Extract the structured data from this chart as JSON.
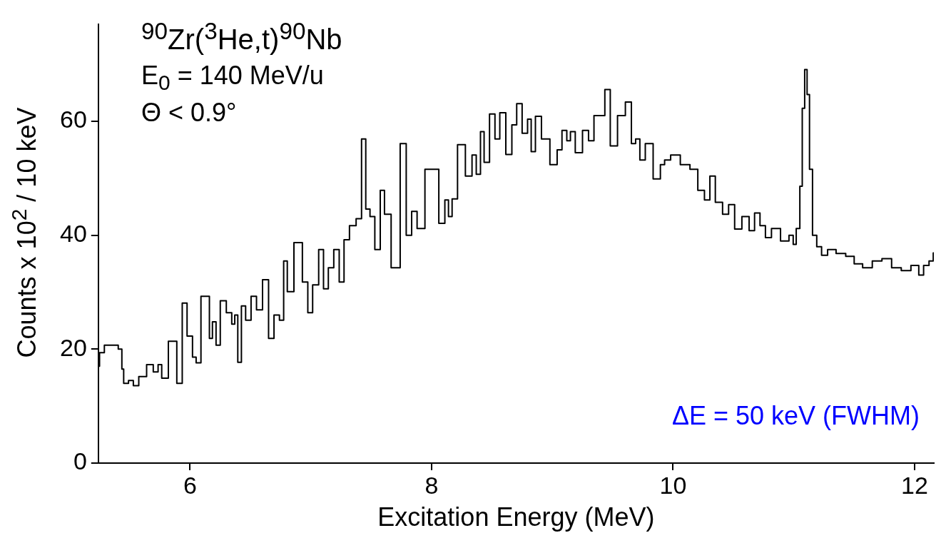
{
  "chart_data": {
    "type": "step",
    "xlabel": "Excitation Energy (MeV)",
    "ylabel": "Counts x 10$^{2}$ / 10 keV",
    "annotations": [
      "$^{90}$Zr($^{3}$He,t)$^{90}$Nb",
      "E$_{0}$ = 140 MeV/u",
      "Θ < 0.9°",
      "ΔE = 50 keV (FWHM)"
    ],
    "xlim": [
      5.24,
      12.16
    ],
    "xticks": [
      6,
      8,
      10,
      12
    ],
    "ylim": [
      0,
      77
    ],
    "yticks": [
      0,
      20,
      40,
      60
    ],
    "grid": false,
    "marker": "none",
    "line_style": "solid",
    "series": [
      {
        "color": "#000000",
        "x": [
          5.24,
          5.26,
          5.32,
          5.38,
          5.43,
          5.44,
          5.46,
          5.52,
          5.54,
          5.61,
          5.67,
          5.72,
          5.75,
          5.78,
          5.86,
          5.92,
          5.95,
          6.0,
          6.04,
          6.06,
          6.12,
          6.15,
          6.17,
          6.2,
          6.23,
          6.27,
          6.33,
          6.36,
          6.38,
          6.41,
          6.44,
          6.48,
          6.53,
          6.57,
          6.63,
          6.67,
          6.72,
          6.76,
          6.79,
          6.82,
          6.9,
          6.96,
          6.99,
          7.04,
          7.09,
          7.12,
          7.17,
          7.21,
          7.26,
          7.29,
          7.35,
          7.4,
          7.44,
          7.47,
          7.51,
          7.55,
          7.6,
          7.62,
          7.71,
          7.77,
          7.81,
          7.86,
          7.9,
          7.99,
          8.03,
          8.09,
          8.13,
          8.15,
          8.19,
          8.24,
          8.32,
          8.35,
          8.39,
          8.42,
          8.45,
          8.51,
          8.54,
          8.59,
          8.64,
          8.69,
          8.72,
          8.78,
          8.81,
          8.84,
          8.88,
          8.94,
          9.02,
          9.06,
          9.1,
          9.14,
          9.16,
          9.22,
          9.28,
          9.32,
          9.37,
          9.42,
          9.45,
          9.51,
          9.57,
          9.64,
          9.67,
          9.71,
          9.74,
          9.8,
          9.87,
          9.92,
          9.94,
          10.02,
          10.1,
          10.18,
          10.23,
          10.29,
          10.32,
          10.38,
          10.44,
          10.48,
          10.54,
          10.6,
          10.66,
          10.69,
          10.75,
          10.78,
          10.85,
          10.93,
          10.99,
          11.0,
          11.04,
          11.06,
          11.08,
          11.1,
          11.12,
          11.14,
          11.17,
          11.21,
          11.25,
          11.31,
          11.39,
          11.47,
          11.53,
          11.61,
          11.69,
          11.77,
          11.85,
          11.93,
          12.01,
          12.06,
          12.09,
          12.15,
          12.16
        ],
        "values": [
          17,
          19.4,
          20.7,
          20.7,
          20,
          16.5,
          14,
          14.5,
          13.6,
          15.2,
          17.3,
          16,
          17.3,
          14.9,
          21.4,
          14,
          28.1,
          22.3,
          18.6,
          17.6,
          29.3,
          29.3,
          21.9,
          24.8,
          20.7,
          28.5,
          26.4,
          24.4,
          26,
          17.7,
          27.6,
          25.1,
          29.3,
          26.9,
          32.2,
          21.9,
          26,
          25.1,
          35.5,
          30.1,
          38.7,
          31.8,
          26.4,
          31.3,
          37.5,
          30.6,
          34.3,
          37.5,
          31.8,
          39.2,
          41.7,
          42.9,
          56.9,
          44.6,
          43.3,
          37.5,
          47.9,
          43.7,
          34.3,
          56.1,
          40,
          44.2,
          41.2,
          51.6,
          51.6,
          42.1,
          46.2,
          43.3,
          46.4,
          55.9,
          50.4,
          54.1,
          50.7,
          58.2,
          52.8,
          61.3,
          56.9,
          61.5,
          54.2,
          59.4,
          63.1,
          57.9,
          60.4,
          54.7,
          60.9,
          56.9,
          52.4,
          55,
          58.4,
          56.6,
          58.2,
          54.5,
          58.4,
          56.6,
          61,
          61,
          65.6,
          55.7,
          61,
          63.4,
          56.1,
          56.9,
          53.2,
          56.1,
          49.9,
          52.4,
          53.2,
          54.1,
          52.4,
          51.6,
          47.9,
          46.2,
          50.4,
          45.8,
          43.7,
          45.4,
          41.1,
          43.3,
          40.8,
          43.9,
          41.7,
          39.6,
          41.2,
          39,
          40,
          38.4,
          41.2,
          48.6,
          62.3,
          69.1,
          64.7,
          51.6,
          40,
          38,
          36.5,
          37.5,
          36.8,
          36.3,
          35,
          34.3,
          35.5,
          35.9,
          34.3,
          33.8,
          34.7,
          33,
          34.7,
          35.5,
          36.9
        ]
      }
    ]
  }
}
